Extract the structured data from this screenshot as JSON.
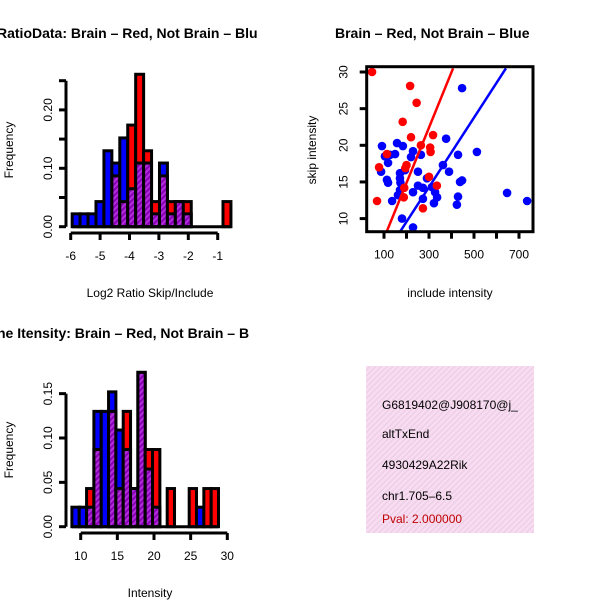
{
  "colors": {
    "red": "#ff0000",
    "blue": "#0000ff",
    "overlap": "#9a10c8",
    "box_bg": "#f7d6f0"
  },
  "chart_data": [
    {
      "type": "bar",
      "title": "RatioData: Brain – Red, Not Brain – Blu",
      "xlabel": "Log2 Ratio Skip/Include",
      "ylabel": "Frequency",
      "xlim": [
        -6,
        -0.6
      ],
      "ylim": [
        0,
        0.26
      ],
      "bin_start": -5.95,
      "bin_width": 0.27,
      "xticks": [
        "-6",
        "-5",
        "-4",
        "-3",
        "-2",
        "-1"
      ],
      "xtick_values": [
        -6,
        -5,
        -4,
        -3,
        -2,
        -1
      ],
      "yticks": [
        "0.00",
        "0.10",
        "0.20"
      ],
      "ytick_values": [
        0,
        0.1,
        0.2
      ],
      "ytick_minor": [
        0.05,
        0.15,
        0.25
      ],
      "series": [
        {
          "name": "Not Brain",
          "color": "blue",
          "values": [
            0.022,
            0.022,
            0.022,
            0.043,
            0.13,
            0.109,
            0.152,
            0.065,
            0.109,
            0.109,
            0.022,
            0.109,
            0.022,
            0.043,
            0.022,
            0,
            0,
            0,
            0,
            0
          ]
        },
        {
          "name": "Brain",
          "color": "red",
          "values": [
            0,
            0,
            0,
            0,
            0,
            0.087,
            0.043,
            0.174,
            0.261,
            0.13,
            0.043,
            0.087,
            0.043,
            0.043,
            0.043,
            0,
            0,
            0,
            0,
            0.043
          ]
        }
      ]
    },
    {
      "type": "scatter",
      "title": "Brain – Red, Not Brain – Blue",
      "xlabel": "include intensity",
      "ylabel": "skip intensity",
      "xlim": [
        23,
        764
      ],
      "ylim": [
        8.2,
        30.7
      ],
      "xticks": [
        "100",
        "300",
        "500",
        "700"
      ],
      "xtick_values": [
        100,
        300,
        500,
        700
      ],
      "xtick_all": [
        100,
        200,
        300,
        400,
        500,
        600,
        700
      ],
      "yticks": [
        "10",
        "15",
        "20",
        "25",
        "30"
      ],
      "ytick_values": [
        10,
        15,
        20,
        25,
        30
      ],
      "series": [
        {
          "name": "Brain",
          "color": "red",
          "x": [
            47,
            216,
            245,
            183,
            220,
            318,
            264,
            305,
            307,
            113,
            78,
            200,
            195,
            300,
            335,
            190,
            188,
            273,
            69
          ],
          "y": [
            30,
            28.1,
            25.8,
            23.2,
            21.1,
            21.4,
            20,
            19.7,
            19.1,
            18.8,
            17,
            17.3,
            16.9,
            15.7,
            14.5,
            14.2,
            12.9,
            11.4,
            12.4
          ],
          "fit": {
            "x": [
              109,
              407
            ],
            "y": [
              8,
              30.5
            ]
          }
        },
        {
          "name": "Not Brain",
          "color": "blue",
          "x": [
            447,
            91,
            158,
            184,
            229,
            220,
            264,
            149,
            104,
            127,
            118,
            376,
            429,
            513,
            362,
            389,
            87,
            251,
            171,
            171,
            173,
            113,
            118,
            291,
            438,
            447,
            251,
            229,
            273,
            313,
            327,
            171,
            162,
            336,
            273,
            322,
            136,
            429,
            424,
            647,
            736,
            180,
            229,
            193
          ],
          "y": [
            27.8,
            19.9,
            20.3,
            19.9,
            19.2,
            18.4,
            18.7,
            18.8,
            18.5,
            18.7,
            17.6,
            20.9,
            18.7,
            19.1,
            17.3,
            16.4,
            16.4,
            16.4,
            16.2,
            15.5,
            14.9,
            15.3,
            14.9,
            15.5,
            15,
            15.2,
            14.5,
            13.6,
            14.2,
            14.3,
            13.6,
            13.9,
            13.2,
            12.9,
            12.7,
            12.1,
            12.4,
            13,
            11.9,
            13.5,
            12.4,
            10,
            8.8,
            16.6
          ],
          "fit": {
            "x": [
              167,
              642
            ],
            "y": [
              8,
              30.5
            ]
          }
        }
      ]
    },
    {
      "type": "bar",
      "title": "ne Itensity: Brain – Red, Not Brain – B",
      "xlabel": "Intensity",
      "ylabel": "Frequency",
      "xlim": [
        8.8,
        29.8
      ],
      "ylim": [
        0,
        0.18
      ],
      "bin_start": 8.8,
      "bin_width": 1,
      "xticks": [
        "10",
        "15",
        "20",
        "25",
        "30"
      ],
      "xtick_values": [
        10,
        15,
        20,
        25,
        30
      ],
      "yticks": [
        "0.00",
        "0.05",
        "0.10",
        "0.15"
      ],
      "ytick_values": [
        0,
        0.05,
        0.1,
        0.15
      ],
      "series": [
        {
          "name": "Not Brain",
          "color": "blue",
          "values": [
            0.022,
            0.022,
            0.022,
            0.13,
            0.13,
            0.152,
            0.109,
            0.087,
            0.043,
            0.174,
            0.065,
            0.022,
            0,
            0,
            0,
            0,
            0,
            0.022,
            0,
            0
          ]
        },
        {
          "name": "Brain",
          "color": "red",
          "values": [
            0,
            0,
            0.043,
            0.087,
            0,
            0.13,
            0.043,
            0.13,
            0.043,
            0.174,
            0.087,
            0.087,
            0,
            0.043,
            0,
            0,
            0.043,
            0,
            0.043,
            0.043
          ]
        }
      ]
    }
  ],
  "info_box": {
    "lines": [
      "G6819402@J908170@j_",
      "altTxEnd",
      "4930429A22Rik",
      "chr1.705–6.5"
    ],
    "pval": "Pval: 2.000000"
  }
}
